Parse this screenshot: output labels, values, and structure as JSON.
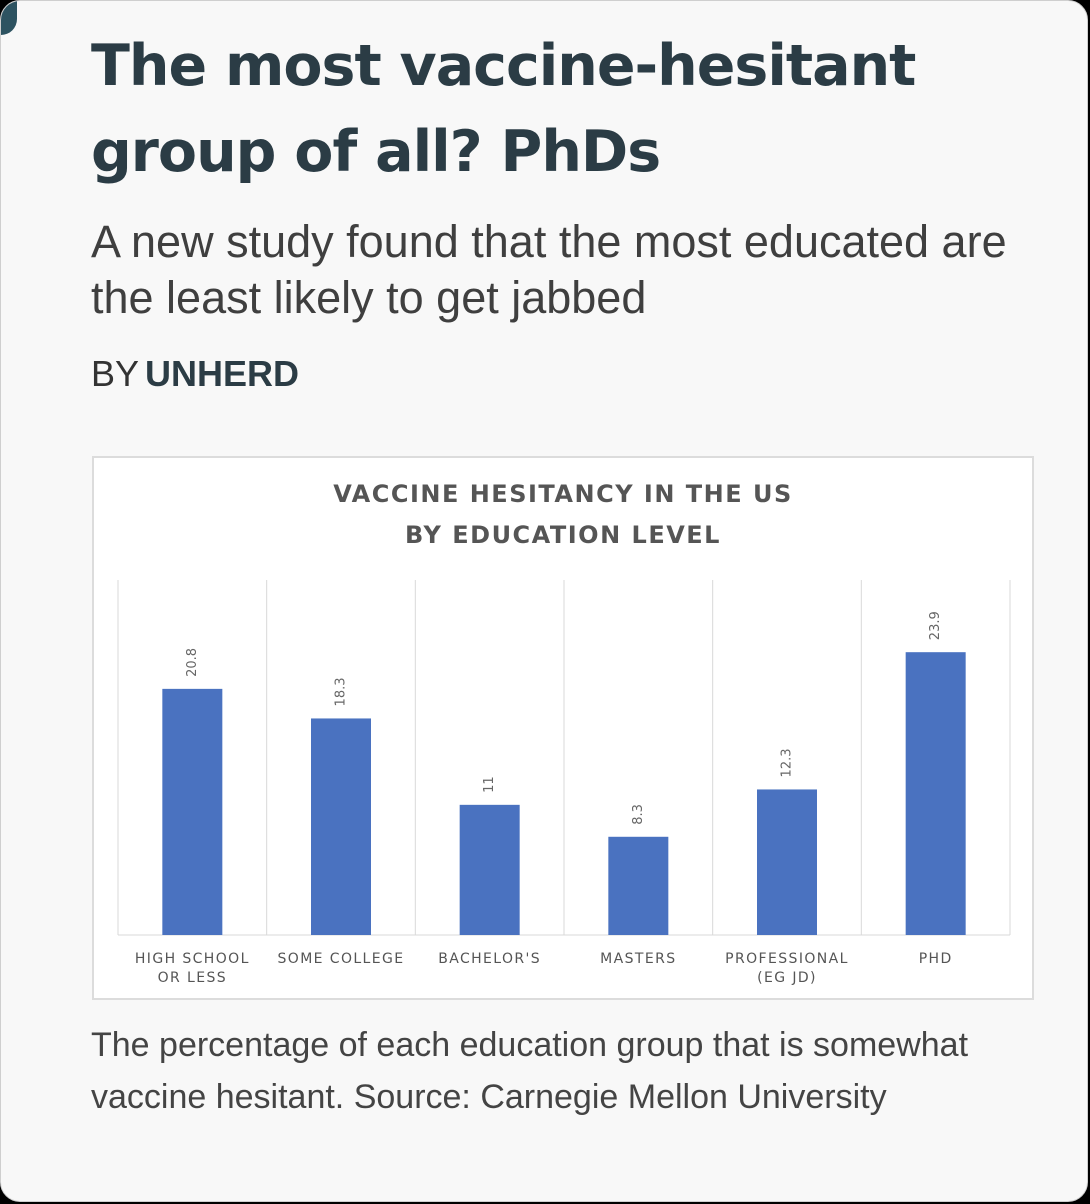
{
  "article": {
    "headline": "The most vaccine-hesitant group of all? PhDs",
    "subhead": "A new study found that the most educated are the least likely to get jabbed",
    "byline_prefix": "BY",
    "byline_author": "UNHERD",
    "caption": "The percentage of each education group that is somewhat vaccine hesitant. Source: Carnegie Mellon University"
  },
  "chart_data": {
    "type": "bar",
    "title_lines": [
      "VACCINE HESITANCY IN THE US",
      "BY EDUCATION LEVEL"
    ],
    "categories": [
      [
        "HIGH SCHOOL",
        "OR LESS"
      ],
      [
        "SOME COLLEGE"
      ],
      [
        "BACHELOR'S"
      ],
      [
        "MASTERS"
      ],
      [
        "PROFESSIONAL",
        "(EG JD)"
      ],
      [
        "PHD"
      ]
    ],
    "values": [
      20.8,
      18.3,
      11,
      8.3,
      12.3,
      23.9
    ],
    "data_labels": [
      "20.8",
      "18.3",
      "11",
      "8.3",
      "12.3",
      "23.9"
    ],
    "ylim": [
      0,
      30
    ],
    "xlabel": "",
    "ylabel": "",
    "grid": "vertical category separators",
    "legend": "none",
    "bar_color": "#4a72c0"
  }
}
